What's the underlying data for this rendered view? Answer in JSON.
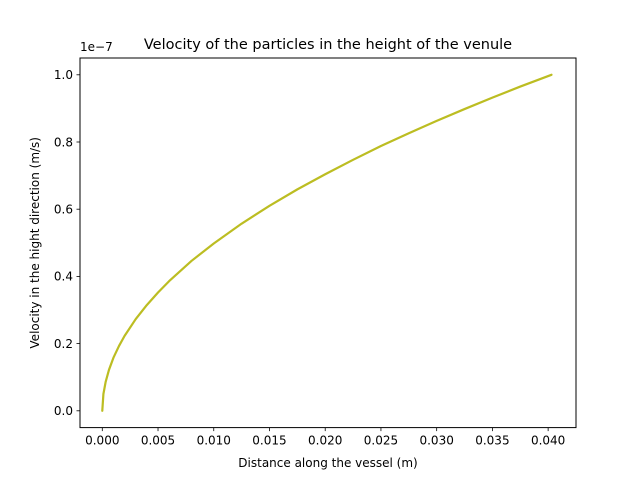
{
  "chart_data": {
    "type": "line",
    "title": "Velocity of the particles in the height of the venule",
    "xlabel": "Distance along the vessel (m)",
    "ylabel": "Velocity in the hight direction (m/s)",
    "y_offset_text": "1e−7",
    "xlim": [
      -0.002,
      0.0425
    ],
    "ylim": [
      -0.05,
      1.05
    ],
    "x_ticks": [
      0.0,
      0.005,
      0.01,
      0.015,
      0.02,
      0.025,
      0.03,
      0.035,
      0.04
    ],
    "x_tick_labels": [
      "0.000",
      "0.005",
      "0.010",
      "0.015",
      "0.020",
      "0.025",
      "0.030",
      "0.035",
      "0.040"
    ],
    "y_ticks": [
      0.0,
      0.2,
      0.4,
      0.6,
      0.8,
      1.0
    ],
    "y_tick_labels": [
      "0.0",
      "0.2",
      "0.4",
      "0.6",
      "0.8",
      "1.0"
    ],
    "grid": false,
    "series": [
      {
        "color": "#bcbd22",
        "x": [
          0.0,
          0.0001,
          0.0003,
          0.0006,
          0.001,
          0.0015,
          0.002,
          0.003,
          0.004,
          0.005,
          0.006,
          0.008,
          0.01,
          0.0125,
          0.015,
          0.0175,
          0.02,
          0.0225,
          0.025,
          0.0275,
          0.03,
          0.0325,
          0.035,
          0.0375,
          0.0403
        ],
        "y": [
          0.0,
          0.05,
          0.086,
          0.122,
          0.158,
          0.193,
          0.223,
          0.273,
          0.315,
          0.352,
          0.386,
          0.446,
          0.498,
          0.557,
          0.61,
          0.659,
          0.704,
          0.747,
          0.788,
          0.826,
          0.863,
          0.898,
          0.932,
          0.965,
          1.0
        ]
      }
    ]
  }
}
